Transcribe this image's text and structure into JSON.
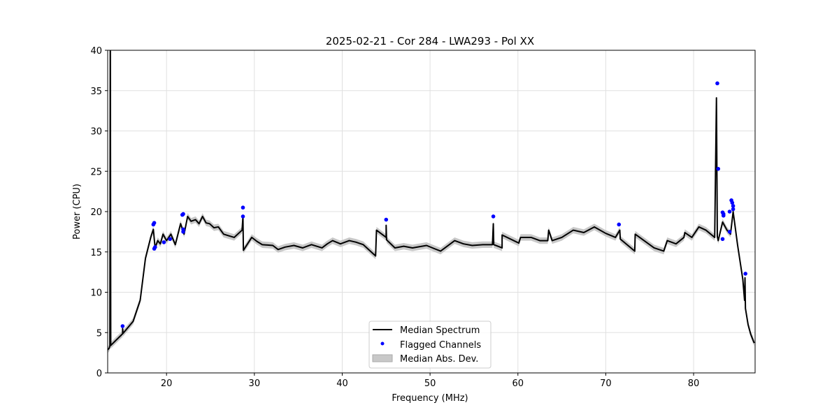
{
  "chart_data": {
    "type": "line",
    "title": "2025-02-21 - Cor 284 - LWA293 - Pol XX",
    "xlabel": "Frequency (MHz)",
    "ylabel": "Power (CPU)",
    "xlim": [
      13.3,
      87.0
    ],
    "ylim": [
      0,
      40
    ],
    "xticks": [
      20,
      30,
      40,
      50,
      60,
      70,
      80
    ],
    "yticks": [
      0,
      5,
      10,
      15,
      20,
      25,
      30,
      35,
      40
    ],
    "grid": true,
    "legend_position": "bottom-center",
    "legend": [
      "Median Spectrum",
      "Flagged Channels",
      "Median Abs. Dev."
    ],
    "colors": {
      "median": "#000000",
      "flagged": "#0000ff",
      "mad": "#c8c8c8"
    },
    "mad_width": 0.4,
    "median_spectrum": [
      [
        13.3,
        2.86
      ],
      [
        13.5,
        3.1
      ],
      [
        13.55,
        3.3
      ],
      [
        13.6,
        45
      ],
      [
        13.65,
        3.4
      ],
      [
        14.2,
        4.0
      ],
      [
        15.0,
        4.85
      ],
      [
        15.0,
        5.5
      ],
      [
        15.05,
        4.9
      ],
      [
        16.2,
        6.4
      ],
      [
        17.0,
        9.0
      ],
      [
        17.6,
        14.2
      ],
      [
        18.2,
        16.8
      ],
      [
        18.5,
        17.8
      ],
      [
        18.7,
        15.5
      ],
      [
        19.0,
        16.4
      ],
      [
        19.3,
        16.0
      ],
      [
        19.6,
        17.2
      ],
      [
        20.0,
        16.4
      ],
      [
        20.5,
        17.2
      ],
      [
        21.0,
        15.9
      ],
      [
        21.6,
        18.5
      ],
      [
        22.0,
        17.2
      ],
      [
        22.4,
        19.4
      ],
      [
        22.8,
        18.8
      ],
      [
        23.3,
        19.0
      ],
      [
        23.7,
        18.5
      ],
      [
        24.1,
        19.4
      ],
      [
        24.5,
        18.6
      ],
      [
        24.9,
        18.5
      ],
      [
        25.4,
        18.0
      ],
      [
        25.9,
        18.1
      ],
      [
        26.5,
        17.2
      ],
      [
        27.1,
        17.0
      ],
      [
        27.7,
        16.8
      ],
      [
        28.6,
        17.7
      ],
      [
        28.7,
        19.4
      ],
      [
        28.75,
        15.2
      ],
      [
        29.7,
        16.8
      ],
      [
        30.3,
        16.3
      ],
      [
        30.9,
        15.9
      ],
      [
        32.1,
        15.8
      ],
      [
        32.7,
        15.3
      ],
      [
        33.5,
        15.6
      ],
      [
        34.5,
        15.8
      ],
      [
        35.5,
        15.5
      ],
      [
        36.5,
        15.9
      ],
      [
        37.7,
        15.5
      ],
      [
        38.3,
        16.0
      ],
      [
        38.9,
        16.4
      ],
      [
        39.8,
        16.0
      ],
      [
        40.8,
        16.4
      ],
      [
        41.6,
        16.2
      ],
      [
        42.4,
        15.9
      ],
      [
        43.8,
        14.5
      ],
      [
        43.9,
        17.7
      ],
      [
        45.0,
        16.8
      ],
      [
        45.0,
        18.3
      ],
      [
        45.05,
        16.5
      ],
      [
        46.0,
        15.5
      ],
      [
        47.0,
        15.7
      ],
      [
        48.0,
        15.5
      ],
      [
        49.6,
        15.8
      ],
      [
        50.5,
        15.4
      ],
      [
        51.2,
        15.1
      ],
      [
        52.8,
        16.4
      ],
      [
        53.8,
        16.0
      ],
      [
        54.8,
        15.8
      ],
      [
        56.0,
        15.9
      ],
      [
        57.1,
        15.9
      ],
      [
        57.2,
        18.5
      ],
      [
        57.25,
        15.9
      ],
      [
        58.2,
        15.5
      ],
      [
        58.2,
        17.1
      ],
      [
        60.1,
        16.1
      ],
      [
        60.3,
        16.8
      ],
      [
        61.5,
        16.8
      ],
      [
        62.5,
        16.4
      ],
      [
        63.4,
        16.4
      ],
      [
        63.5,
        17.7
      ],
      [
        63.9,
        16.4
      ],
      [
        65.0,
        16.8
      ],
      [
        66.3,
        17.7
      ],
      [
        67.5,
        17.4
      ],
      [
        68.7,
        18.1
      ],
      [
        70.0,
        17.3
      ],
      [
        71.1,
        16.8
      ],
      [
        71.6,
        17.7
      ],
      [
        71.65,
        16.6
      ],
      [
        73.3,
        15.1
      ],
      [
        73.35,
        17.2
      ],
      [
        75.5,
        15.5
      ],
      [
        76.6,
        15.1
      ],
      [
        77.0,
        16.4
      ],
      [
        78.0,
        16.0
      ],
      [
        78.9,
        16.8
      ],
      [
        79.0,
        17.4
      ],
      [
        79.8,
        16.8
      ],
      [
        80.6,
        18.1
      ],
      [
        81.4,
        17.7
      ],
      [
        82.4,
        16.8
      ],
      [
        82.6,
        34.1
      ],
      [
        82.7,
        16.9
      ],
      [
        82.8,
        16.4
      ],
      [
        83.3,
        18.7
      ],
      [
        83.8,
        17.7
      ],
      [
        84.2,
        17.2
      ],
      [
        84.5,
        20.0
      ],
      [
        85.0,
        15.9
      ],
      [
        85.6,
        11.6
      ],
      [
        85.8,
        9.0
      ],
      [
        85.85,
        11.8
      ],
      [
        85.9,
        8.0
      ],
      [
        86.2,
        6.0
      ],
      [
        86.5,
        4.8
      ],
      [
        86.9,
        3.7
      ]
    ],
    "flagged_channels": [
      [
        15.0,
        5.8
      ],
      [
        18.5,
        18.4
      ],
      [
        18.6,
        18.6
      ],
      [
        18.6,
        15.4
      ],
      [
        18.7,
        15.6
      ],
      [
        19.7,
        16.2
      ],
      [
        20.4,
        16.6
      ],
      [
        21.8,
        19.6
      ],
      [
        21.9,
        19.7
      ],
      [
        21.9,
        17.5
      ],
      [
        21.9,
        17.8
      ],
      [
        28.7,
        20.5
      ],
      [
        28.7,
        19.4
      ],
      [
        45.0,
        19.0
      ],
      [
        57.2,
        19.4
      ],
      [
        71.5,
        18.4
      ],
      [
        82.7,
        35.9
      ],
      [
        82.8,
        25.3
      ],
      [
        83.3,
        19.9
      ],
      [
        83.4,
        19.7
      ],
      [
        83.4,
        19.5
      ],
      [
        83.3,
        16.6
      ],
      [
        84.1,
        20.0
      ],
      [
        84.1,
        17.5
      ],
      [
        84.3,
        21.4
      ],
      [
        84.4,
        21.1
      ],
      [
        84.5,
        20.7
      ],
      [
        84.5,
        20.3
      ],
      [
        85.9,
        12.3
      ]
    ]
  }
}
